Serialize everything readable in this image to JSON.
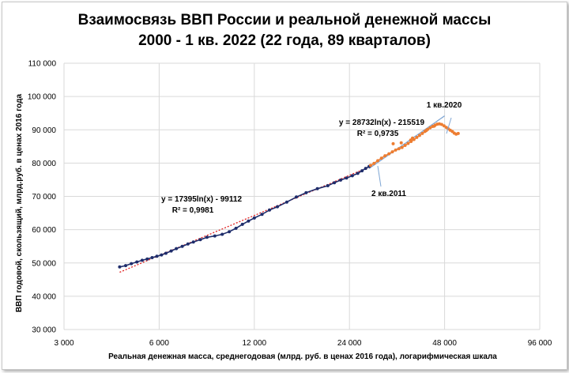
{
  "chart_data": {
    "type": "scatter",
    "title": "Взаимосвязь ВВП России и реальной денежной массы",
    "subtitle": "2000 - 1 кв. 2022 (22 года, 89 кварталов)",
    "xlabel": "Реальная денежная масса, среднегодовая (млрд. руб. в ценах 2016 года), логарифмическая шкала",
    "ylabel": "ВВП годовой, скользящий, млрд.руб. в ценах 2016 года",
    "x_scale": "log2",
    "xlim": [
      3000,
      96000
    ],
    "ylim": [
      30000,
      110000
    ],
    "x_ticks": [
      "3 000",
      "6 000",
      "12 000",
      "24 000",
      "48 000",
      "96 000"
    ],
    "x_tick_values": [
      3000,
      6000,
      12000,
      24000,
      48000,
      96000
    ],
    "y_ticks": [
      "30 000",
      "40 000",
      "50 000",
      "60 000",
      "70 000",
      "80 000",
      "90 000",
      "100 000",
      "110 000"
    ],
    "y_tick_values": [
      30000,
      40000,
      50000,
      60000,
      70000,
      80000,
      90000,
      100000,
      110000
    ],
    "grid": true,
    "colors": {
      "series_2000_2011": "#1f2d6b",
      "series_2011_2022": "#ed7d31",
      "trend_1": "#e02020",
      "trend_2": "#7fa6d4",
      "grid": "#d9d9d9"
    },
    "series": [
      {
        "points": [
          [
            4500,
            48800
          ],
          [
            4700,
            49200
          ],
          [
            4900,
            49800
          ],
          [
            5100,
            50300
          ],
          [
            5300,
            50800
          ],
          [
            5500,
            51200
          ],
          [
            5700,
            51600
          ],
          [
            5900,
            52000
          ],
          [
            6100,
            52400
          ],
          [
            6300,
            52900
          ],
          [
            6550,
            53600
          ],
          [
            6800,
            54300
          ],
          [
            7100,
            55000
          ],
          [
            7400,
            55700
          ],
          [
            7700,
            56300
          ],
          [
            8100,
            57000
          ],
          [
            8500,
            57700
          ],
          [
            9000,
            58100
          ],
          [
            9500,
            58600
          ],
          [
            10000,
            59400
          ],
          [
            10500,
            60400
          ],
          [
            11000,
            61600
          ],
          [
            11500,
            62600
          ],
          [
            12000,
            63500
          ],
          [
            12700,
            64600
          ],
          [
            13400,
            65900
          ],
          [
            14200,
            66900
          ],
          [
            15200,
            68300
          ],
          [
            16300,
            69800
          ],
          [
            17500,
            71100
          ],
          [
            19000,
            72300
          ],
          [
            20500,
            73200
          ],
          [
            21500,
            74100
          ],
          [
            22500,
            74900
          ],
          [
            23500,
            75500
          ],
          [
            24500,
            76200
          ],
          [
            25500,
            76900
          ],
          [
            26300,
            77700
          ],
          [
            27000,
            78400
          ],
          [
            27700,
            79000
          ]
        ]
      },
      {
        "points": [
          [
            28000,
            79300
          ],
          [
            28700,
            79900
          ],
          [
            29500,
            80700
          ],
          [
            30300,
            81500
          ],
          [
            31100,
            82200
          ],
          [
            32000,
            82800
          ],
          [
            32800,
            83400
          ],
          [
            33600,
            83900
          ],
          [
            34400,
            84300
          ],
          [
            35200,
            84700
          ],
          [
            36000,
            85300
          ],
          [
            36800,
            85900
          ],
          [
            37600,
            86500
          ],
          [
            38400,
            87100
          ],
          [
            39200,
            87700
          ],
          [
            40000,
            88300
          ],
          [
            40800,
            88900
          ],
          [
            41600,
            89500
          ],
          [
            42400,
            90100
          ],
          [
            43200,
            90600
          ],
          [
            44000,
            91000
          ],
          [
            44800,
            91400
          ],
          [
            45500,
            91700
          ],
          [
            46200,
            91800
          ],
          [
            47000,
            91600
          ],
          [
            47800,
            91200
          ],
          [
            48600,
            90700
          ],
          [
            49300,
            90300
          ],
          [
            50000,
            89900
          ],
          [
            50800,
            89500
          ],
          [
            51500,
            89000
          ],
          [
            52200,
            88700
          ],
          [
            53000,
            88900
          ],
          [
            33000,
            85800
          ],
          [
            35000,
            86100
          ],
          [
            37500,
            86900
          ],
          [
            38000,
            87500
          ],
          [
            42000,
            89800
          ],
          [
            44500,
            91100
          ]
        ]
      }
    ],
    "trendlines": [
      {
        "equation": "y = 17395ln(x) - 99112",
        "r2": "R² = 0,9981",
        "a": 17395,
        "b": -99112,
        "x_range": [
          4500,
          27700
        ]
      },
      {
        "equation": "y = 28732ln(x) - 215519",
        "r2": "R² = 0,9735",
        "a": 28732,
        "b": -215519,
        "x_range": [
          27700,
          48000
        ]
      }
    ],
    "annotations": [
      {
        "text": "1 кв.2020",
        "x": 48000,
        "y": 88500
      },
      {
        "text": "2 кв.2011",
        "x": 27700,
        "y": 78700
      }
    ]
  }
}
